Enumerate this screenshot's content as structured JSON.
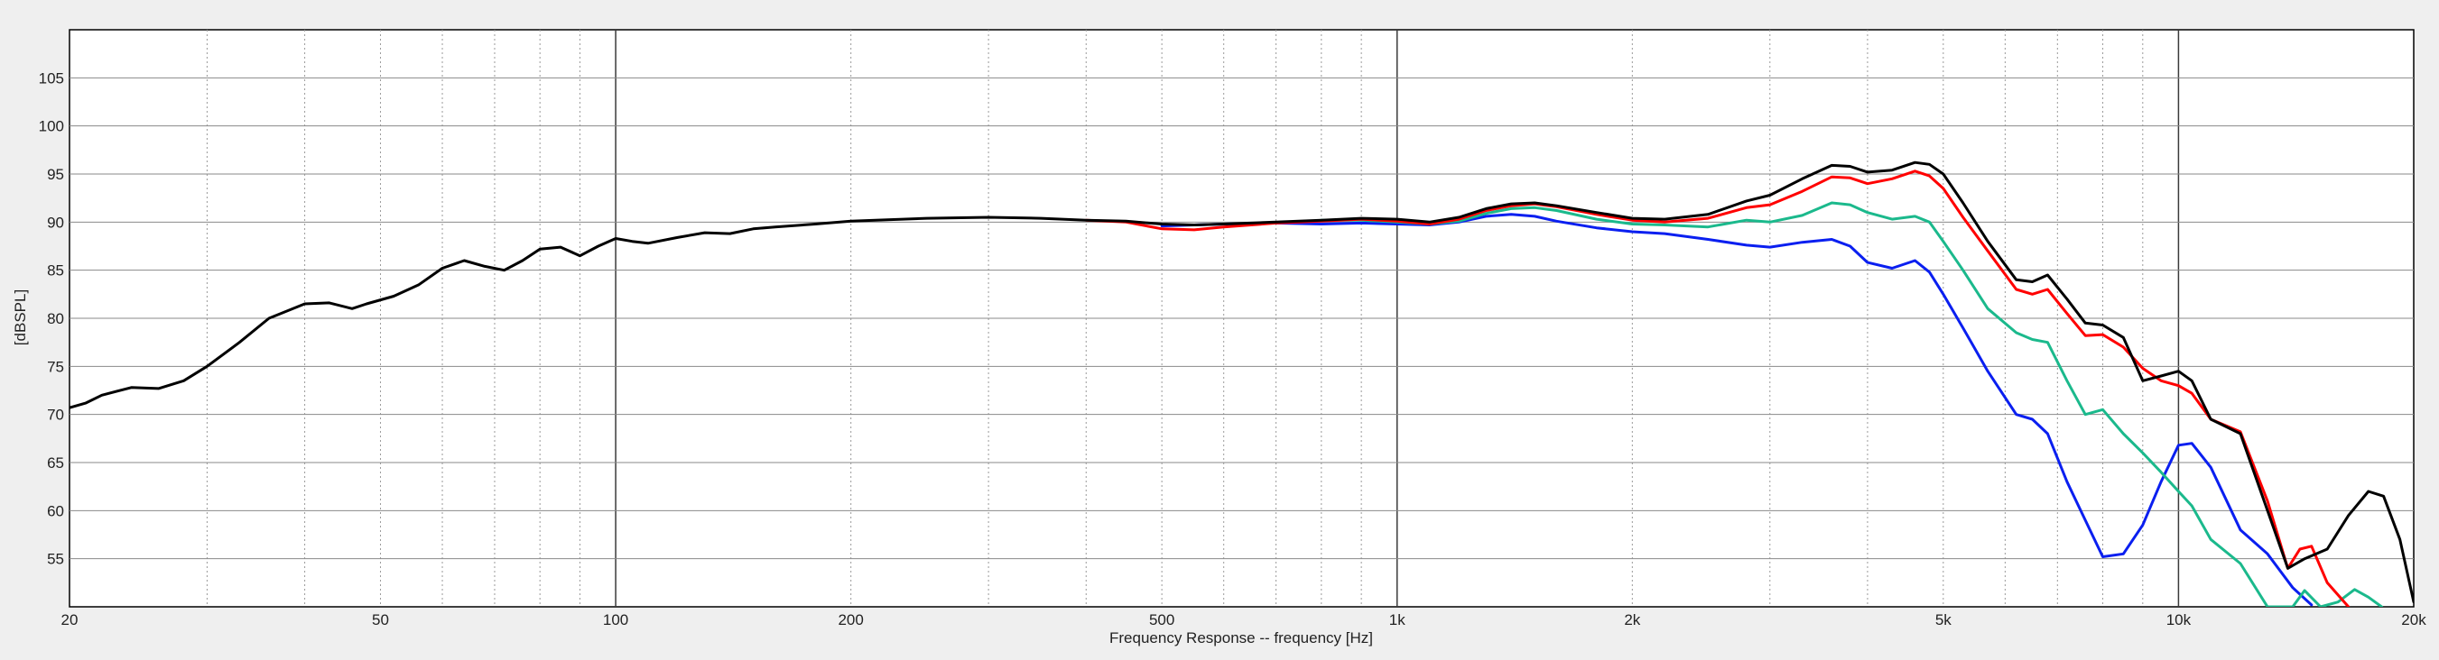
{
  "chart_data": {
    "type": "line",
    "title": "",
    "xlabel": "Frequency Response -- frequency [Hz]",
    "ylabel": "[dBSPL]",
    "x_scale": "log",
    "xlim": [
      20,
      20000
    ],
    "ylim": [
      50,
      110
    ],
    "grid": true,
    "x_major_ticks": [
      {
        "v": 20,
        "label": "20"
      },
      {
        "v": 50,
        "label": "50"
      },
      {
        "v": 100,
        "label": "100"
      },
      {
        "v": 200,
        "label": "200"
      },
      {
        "v": 500,
        "label": "500"
      },
      {
        "v": 1000,
        "label": "1k"
      },
      {
        "v": 2000,
        "label": "2k"
      },
      {
        "v": 5000,
        "label": "5k"
      },
      {
        "v": 10000,
        "label": "10k"
      },
      {
        "v": 20000,
        "label": "20k"
      }
    ],
    "y_ticks": [
      {
        "v": 55,
        "label": "55"
      },
      {
        "v": 60,
        "label": "60"
      },
      {
        "v": 65,
        "label": "65"
      },
      {
        "v": 70,
        "label": "70"
      },
      {
        "v": 75,
        "label": "75"
      },
      {
        "v": 80,
        "label": "80"
      },
      {
        "v": 85,
        "label": "85"
      },
      {
        "v": 90,
        "label": "90"
      },
      {
        "v": 95,
        "label": "95"
      },
      {
        "v": 100,
        "label": "100"
      },
      {
        "v": 105,
        "label": "105"
      }
    ],
    "series": [
      {
        "color": "#000000",
        "points": [
          [
            20,
            70.7
          ],
          [
            21,
            71.2
          ],
          [
            22,
            72.0
          ],
          [
            24,
            72.8
          ],
          [
            26,
            72.7
          ],
          [
            28,
            73.5
          ],
          [
            30,
            75.0
          ],
          [
            33,
            77.5
          ],
          [
            36,
            80.0
          ],
          [
            40,
            81.5
          ],
          [
            43,
            81.6
          ],
          [
            46,
            81.0
          ],
          [
            48,
            81.5
          ],
          [
            52,
            82.3
          ],
          [
            56,
            83.5
          ],
          [
            60,
            85.2
          ],
          [
            64,
            86.0
          ],
          [
            68,
            85.4
          ],
          [
            72,
            85.0
          ],
          [
            76,
            86.0
          ],
          [
            80,
            87.2
          ],
          [
            85,
            87.4
          ],
          [
            90,
            86.5
          ],
          [
            95,
            87.5
          ],
          [
            100,
            88.3
          ],
          [
            105,
            88.0
          ],
          [
            110,
            87.8
          ],
          [
            120,
            88.4
          ],
          [
            130,
            88.9
          ],
          [
            140,
            88.8
          ],
          [
            150,
            89.3
          ],
          [
            160,
            89.5
          ],
          [
            180,
            89.8
          ],
          [
            200,
            90.1
          ],
          [
            250,
            90.4
          ],
          [
            300,
            90.5
          ],
          [
            350,
            90.4
          ],
          [
            400,
            90.2
          ],
          [
            450,
            90.1
          ],
          [
            500,
            89.8
          ],
          [
            550,
            89.7
          ],
          [
            600,
            89.8
          ],
          [
            700,
            90.0
          ],
          [
            800,
            90.2
          ],
          [
            900,
            90.4
          ],
          [
            1000,
            90.3
          ],
          [
            1100,
            90.0
          ],
          [
            1200,
            90.5
          ],
          [
            1300,
            91.4
          ],
          [
            1400,
            91.9
          ],
          [
            1500,
            92.0
          ],
          [
            1600,
            91.7
          ],
          [
            1800,
            91.0
          ],
          [
            2000,
            90.4
          ],
          [
            2200,
            90.3
          ],
          [
            2500,
            90.8
          ],
          [
            2800,
            92.2
          ],
          [
            3000,
            92.8
          ],
          [
            3300,
            94.5
          ],
          [
            3600,
            95.9
          ],
          [
            3800,
            95.8
          ],
          [
            4000,
            95.2
          ],
          [
            4300,
            95.4
          ],
          [
            4600,
            96.2
          ],
          [
            4800,
            96.0
          ],
          [
            5000,
            95.0
          ],
          [
            5300,
            92.0
          ],
          [
            5700,
            88.0
          ],
          [
            6200,
            84.0
          ],
          [
            6500,
            83.8
          ],
          [
            6800,
            84.5
          ],
          [
            7200,
            82.0
          ],
          [
            7600,
            79.5
          ],
          [
            8000,
            79.3
          ],
          [
            8500,
            78.0
          ],
          [
            9000,
            73.5
          ],
          [
            9500,
            74.0
          ],
          [
            10000,
            74.5
          ],
          [
            10400,
            73.5
          ],
          [
            11000,
            69.5
          ],
          [
            12000,
            68.0
          ],
          [
            13000,
            60.0
          ],
          [
            13800,
            54.0
          ],
          [
            14500,
            55.0
          ],
          [
            15500,
            56.0
          ],
          [
            16500,
            59.5
          ],
          [
            17500,
            62.0
          ],
          [
            18300,
            61.5
          ],
          [
            19200,
            57.0
          ],
          [
            20000,
            50.5
          ]
        ]
      },
      {
        "color": "#ff0000",
        "points": [
          [
            400,
            90.2
          ],
          [
            450,
            90.0
          ],
          [
            500,
            89.3
          ],
          [
            550,
            89.2
          ],
          [
            600,
            89.5
          ],
          [
            700,
            89.9
          ],
          [
            800,
            90.1
          ],
          [
            900,
            90.3
          ],
          [
            1000,
            90.1
          ],
          [
            1100,
            89.8
          ],
          [
            1200,
            90.3
          ],
          [
            1300,
            91.2
          ],
          [
            1400,
            91.7
          ],
          [
            1500,
            91.9
          ],
          [
            1600,
            91.6
          ],
          [
            1800,
            90.8
          ],
          [
            2000,
            90.2
          ],
          [
            2200,
            90.0
          ],
          [
            2500,
            90.4
          ],
          [
            2800,
            91.5
          ],
          [
            3000,
            91.8
          ],
          [
            3300,
            93.2
          ],
          [
            3600,
            94.7
          ],
          [
            3800,
            94.6
          ],
          [
            4000,
            94.0
          ],
          [
            4300,
            94.5
          ],
          [
            4600,
            95.3
          ],
          [
            4800,
            94.8
          ],
          [
            5000,
            93.5
          ],
          [
            5300,
            90.5
          ],
          [
            5700,
            87.0
          ],
          [
            6200,
            83.0
          ],
          [
            6500,
            82.5
          ],
          [
            6800,
            83.0
          ],
          [
            7200,
            80.5
          ],
          [
            7600,
            78.2
          ],
          [
            8000,
            78.3
          ],
          [
            8500,
            77.0
          ],
          [
            9000,
            74.8
          ],
          [
            9500,
            73.5
          ],
          [
            10000,
            73.0
          ],
          [
            10400,
            72.2
          ],
          [
            11000,
            69.5
          ],
          [
            12000,
            68.2
          ],
          [
            13000,
            61.0
          ],
          [
            13800,
            54.0
          ],
          [
            14300,
            56.0
          ],
          [
            14800,
            56.3
          ],
          [
            15500,
            52.5
          ],
          [
            16500,
            50.0
          ]
        ]
      },
      {
        "color": "#1bb98c",
        "points": [
          [
            800,
            90.2
          ],
          [
            900,
            90.2
          ],
          [
            1000,
            90.0
          ],
          [
            1100,
            89.8
          ],
          [
            1200,
            90.1
          ],
          [
            1300,
            90.9
          ],
          [
            1400,
            91.4
          ],
          [
            1500,
            91.5
          ],
          [
            1600,
            91.2
          ],
          [
            1800,
            90.3
          ],
          [
            2000,
            89.8
          ],
          [
            2200,
            89.7
          ],
          [
            2500,
            89.5
          ],
          [
            2800,
            90.2
          ],
          [
            3000,
            90.0
          ],
          [
            3300,
            90.7
          ],
          [
            3600,
            92.0
          ],
          [
            3800,
            91.8
          ],
          [
            4000,
            91.0
          ],
          [
            4300,
            90.3
          ],
          [
            4600,
            90.6
          ],
          [
            4800,
            90.0
          ],
          [
            5000,
            88.0
          ],
          [
            5300,
            85.0
          ],
          [
            5700,
            81.0
          ],
          [
            6200,
            78.5
          ],
          [
            6500,
            77.8
          ],
          [
            6800,
            77.5
          ],
          [
            7200,
            73.5
          ],
          [
            7600,
            70.0
          ],
          [
            8000,
            70.5
          ],
          [
            8500,
            68.0
          ],
          [
            9000,
            66.0
          ],
          [
            9500,
            64.0
          ],
          [
            10000,
            62.0
          ],
          [
            10400,
            60.5
          ],
          [
            11000,
            57.0
          ],
          [
            12000,
            54.5
          ],
          [
            13000,
            50.0
          ],
          [
            14000,
            50.0
          ],
          [
            14500,
            51.7
          ],
          [
            15200,
            50.0
          ],
          [
            16000,
            50.5
          ],
          [
            16800,
            51.8
          ],
          [
            17500,
            51.0
          ],
          [
            18200,
            50.0
          ]
        ]
      },
      {
        "color": "#0a1ff0",
        "points": [
          [
            500,
            89.6
          ],
          [
            550,
            89.7
          ],
          [
            600,
            89.8
          ],
          [
            700,
            89.9
          ],
          [
            800,
            89.8
          ],
          [
            900,
            89.9
          ],
          [
            1000,
            89.8
          ],
          [
            1100,
            89.7
          ],
          [
            1200,
            90.0
          ],
          [
            1300,
            90.6
          ],
          [
            1400,
            90.8
          ],
          [
            1500,
            90.6
          ],
          [
            1600,
            90.1
          ],
          [
            1800,
            89.4
          ],
          [
            2000,
            89.0
          ],
          [
            2200,
            88.8
          ],
          [
            2500,
            88.2
          ],
          [
            2800,
            87.6
          ],
          [
            3000,
            87.4
          ],
          [
            3300,
            87.9
          ],
          [
            3600,
            88.2
          ],
          [
            3800,
            87.5
          ],
          [
            4000,
            85.8
          ],
          [
            4300,
            85.2
          ],
          [
            4600,
            86.0
          ],
          [
            4800,
            84.8
          ],
          [
            5000,
            82.5
          ],
          [
            5300,
            79.0
          ],
          [
            5700,
            74.5
          ],
          [
            6200,
            70.0
          ],
          [
            6500,
            69.5
          ],
          [
            6800,
            68.0
          ],
          [
            7200,
            63.0
          ],
          [
            7600,
            59.0
          ],
          [
            8000,
            55.2
          ],
          [
            8500,
            55.5
          ],
          [
            9000,
            58.5
          ],
          [
            9500,
            63.0
          ],
          [
            10000,
            66.8
          ],
          [
            10400,
            67.0
          ],
          [
            11000,
            64.5
          ],
          [
            12000,
            58.0
          ],
          [
            13000,
            55.5
          ],
          [
            14000,
            52.0
          ],
          [
            14800,
            50.2
          ]
        ]
      }
    ]
  }
}
